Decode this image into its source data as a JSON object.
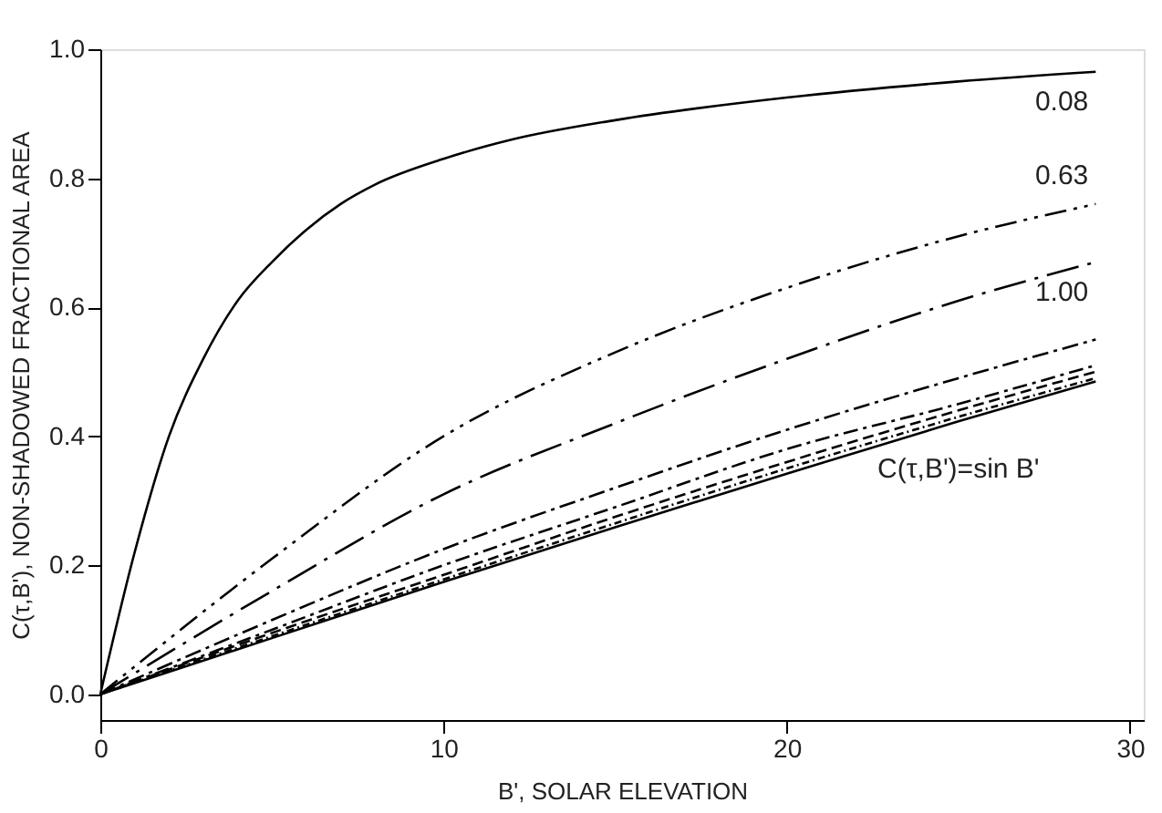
{
  "chart_data": {
    "type": "line",
    "xlabel": "B',  SOLAR ELEVATION",
    "ylabel": "C(τ,B'), NON-SHADOWED FRACTIONAL AREA",
    "xlim": [
      0,
      30.4
    ],
    "xticks": [
      0,
      10,
      20,
      30
    ],
    "ylim": [
      -0.04,
      1.0
    ],
    "yticks": [
      {
        "value": 0,
        "label": "0.0"
      },
      {
        "value": 0.2,
        "label": "0.2"
      },
      {
        "value": 0.4,
        "label": "0.4"
      },
      {
        "value": 0.6,
        "label": "0.6"
      },
      {
        "value": 0.8,
        "label": "0.8"
      },
      {
        "value": 1.0,
        "label": "1.0"
      }
    ],
    "grid": false,
    "marker": "none",
    "series": [
      {
        "color": "#000000",
        "line_style": "solid",
        "x": [
          0,
          1,
          2,
          3,
          4,
          5,
          6,
          7,
          8,
          10,
          12,
          15,
          20,
          25,
          29
        ],
        "values": [
          0,
          0.22,
          0.4,
          0.52,
          0.61,
          0.67,
          0.72,
          0.76,
          0.79,
          0.83,
          0.86,
          0.89,
          0.925,
          0.95,
          0.965
        ]
      },
      {
        "color": "#000000",
        "line_style": "dashed",
        "x": [
          0,
          5,
          10,
          15,
          20,
          25,
          29
        ],
        "values": [
          0,
          0.21,
          0.4,
          0.53,
          0.63,
          0.71,
          0.76
        ]
      },
      {
        "color": "#000000",
        "line_style": "dashed",
        "x": [
          0,
          5,
          10,
          15,
          20,
          25,
          29
        ],
        "values": [
          0,
          0.16,
          0.31,
          0.42,
          0.52,
          0.61,
          0.67
        ]
      },
      {
        "color": "#000000",
        "line_style": "dashed",
        "x": [
          0,
          5,
          10,
          15,
          20,
          25,
          29
        ],
        "values": [
          0,
          0.115,
          0.225,
          0.32,
          0.41,
          0.49,
          0.55
        ]
      },
      {
        "color": "#000000",
        "line_style": "dashed",
        "x": [
          0,
          5,
          10,
          15,
          20,
          25,
          29
        ],
        "values": [
          0,
          0.1,
          0.2,
          0.29,
          0.38,
          0.45,
          0.51
        ]
      },
      {
        "color": "#000000",
        "line_style": "dashed",
        "x": [
          0,
          5,
          10,
          15,
          20,
          25,
          29
        ],
        "values": [
          0,
          0.095,
          0.185,
          0.275,
          0.36,
          0.44,
          0.5
        ]
      },
      {
        "color": "#000000",
        "line_style": "dashed",
        "x": [
          0,
          5,
          10,
          15,
          20,
          25,
          29
        ],
        "values": [
          0,
          0.09,
          0.178,
          0.265,
          0.35,
          0.43,
          0.49
        ]
      },
      {
        "color": "#000000",
        "line_style": "solid",
        "x": [
          0,
          5,
          10,
          15,
          20,
          25,
          29
        ],
        "values": [
          0,
          0.087,
          0.174,
          0.259,
          0.342,
          0.423,
          0.485
        ]
      }
    ],
    "annotations": [
      "0.08",
      "0.63",
      "1.00",
      "C(τ,B')=sin B'"
    ]
  }
}
